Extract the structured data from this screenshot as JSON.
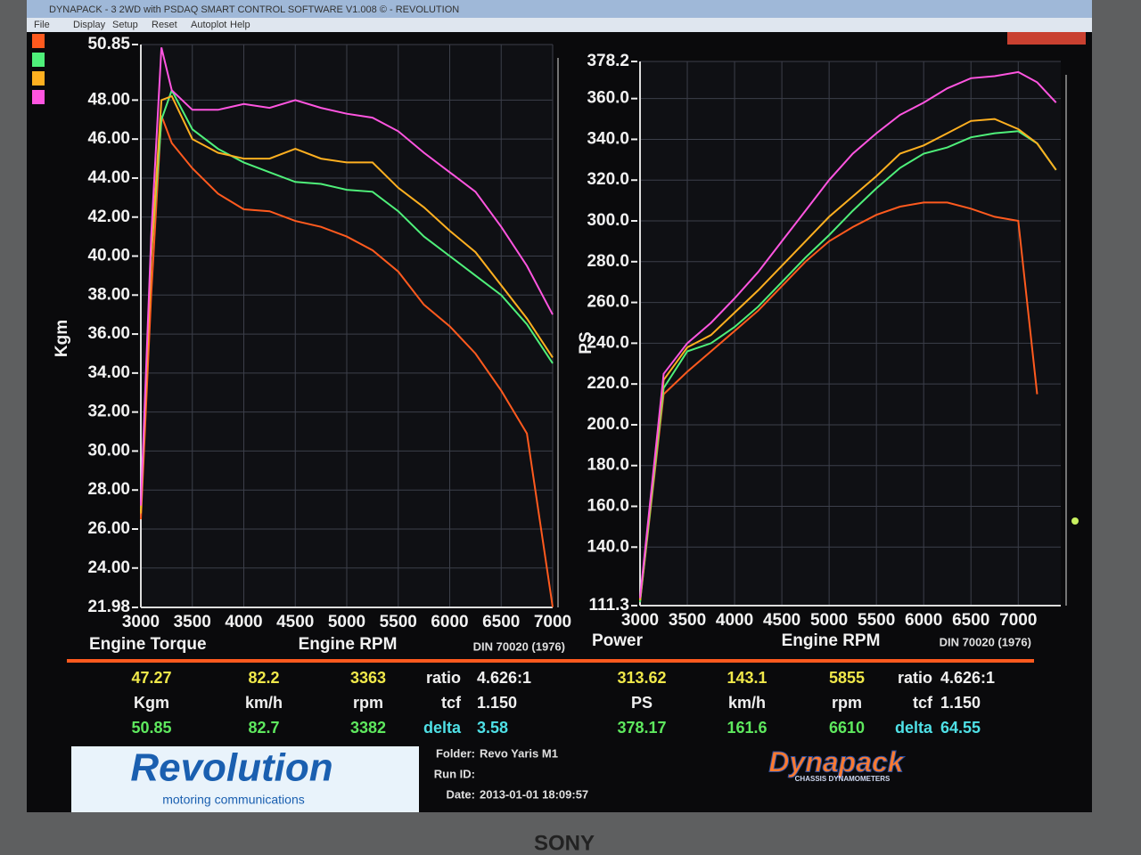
{
  "window": {
    "title": "DYNAPACK - 3 2WD with PSDAQ SMART CONTROL SOFTWARE V1.008 © - REVOLUTION",
    "menu": [
      "File",
      "Display",
      "Setup",
      "Reset",
      "Autoplot",
      "Help"
    ]
  },
  "chart_data": [
    {
      "type": "line",
      "title": "Engine Torque",
      "x_label": "Engine RPM",
      "y_label": "Kgm",
      "subtitle": "DIN 70020 (1976)",
      "x": [
        3000,
        3100,
        3200,
        3300,
        3500,
        3750,
        4000,
        4250,
        4500,
        4750,
        5000,
        5250,
        5500,
        5750,
        6000,
        6250,
        6500,
        6750,
        7000
      ],
      "series": [
        {
          "color": "#ff5a1e",
          "values": [
            26.5,
            38,
            47.2,
            45.8,
            44.5,
            43.2,
            42.4,
            42.3,
            41.8,
            41.5,
            41.0,
            40.3,
            39.2,
            37.5,
            36.4,
            35.0,
            33.1,
            30.9,
            22.0
          ]
        },
        {
          "color": "#4ff07a",
          "values": [
            27.0,
            40,
            47.0,
            48.5,
            46.5,
            45.5,
            44.8,
            44.3,
            43.8,
            43.7,
            43.4,
            43.3,
            42.3,
            41.0,
            40.0,
            39.0,
            38.0,
            36.5,
            34.5
          ]
        },
        {
          "color": "#ffb020",
          "values": [
            26.8,
            40,
            48.0,
            48.2,
            46.0,
            45.3,
            45.0,
            45.0,
            45.5,
            45.0,
            44.8,
            44.8,
            43.5,
            42.5,
            41.3,
            40.2,
            38.5,
            36.8,
            34.8
          ]
        },
        {
          "color": "#ff55e0",
          "values": [
            27.2,
            41,
            50.7,
            48.5,
            47.5,
            47.5,
            47.8,
            47.6,
            48.0,
            47.6,
            47.3,
            47.1,
            46.4,
            45.3,
            44.3,
            43.3,
            41.5,
            39.5,
            37.0
          ]
        }
      ],
      "xlim": [
        3000,
        7000
      ],
      "xticks": [
        3000,
        3500,
        4000,
        4500,
        5000,
        5500,
        6000,
        6500,
        7000
      ],
      "ylim": [
        21.98,
        50.85
      ],
      "yticks": [
        21.98,
        {
          "value": 24,
          "label": "24.00"
        },
        {
          "value": 26,
          "label": "26.00"
        },
        {
          "value": 28,
          "label": "28.00"
        },
        {
          "value": 30,
          "label": "30.00"
        },
        {
          "value": 32,
          "label": "32.00"
        },
        {
          "value": 34,
          "label": "34.00"
        },
        {
          "value": 36,
          "label": "36.00"
        },
        {
          "value": 38,
          "label": "38.00"
        },
        {
          "value": 40,
          "label": "40.00"
        },
        {
          "value": 42,
          "label": "42.00"
        },
        {
          "value": 44,
          "label": "44.00"
        },
        {
          "value": 46,
          "label": "46.00"
        },
        {
          "value": 48,
          "label": "48.00"
        },
        50.85
      ],
      "grid": true
    },
    {
      "type": "line",
      "title": "Power",
      "x_label": "Engine RPM",
      "y_label": "PS",
      "subtitle": "DIN 70020 (1976)",
      "x": [
        3000,
        3250,
        3500,
        3750,
        4000,
        4250,
        4500,
        4750,
        5000,
        5250,
        5500,
        5750,
        6000,
        6250,
        6500,
        6750,
        7000,
        7200,
        7400
      ],
      "series": [
        {
          "color": "#ff5a1e",
          "values": [
            113,
            215,
            226,
            236,
            246,
            256,
            268,
            280,
            290,
            297,
            303,
            307,
            309,
            309,
            306,
            302,
            300,
            215,
            null
          ]
        },
        {
          "color": "#4ff07a",
          "values": [
            113,
            218,
            236,
            240,
            248,
            258,
            270,
            282,
            293,
            305,
            316,
            326,
            333,
            336,
            341,
            343,
            344,
            338,
            325
          ]
        },
        {
          "color": "#ffb020",
          "values": [
            114,
            222,
            238,
            244,
            255,
            266,
            278,
            290,
            302,
            312,
            322,
            333,
            337,
            343,
            349,
            350,
            345,
            338,
            325
          ]
        },
        {
          "color": "#ff55e0",
          "values": [
            115,
            225,
            240,
            250,
            262,
            275,
            290,
            305,
            320,
            333,
            343,
            352,
            358,
            365,
            370,
            371,
            373,
            368,
            358
          ]
        }
      ],
      "xlim": [
        3000,
        7450
      ],
      "xticks": [
        3000,
        3500,
        4000,
        4500,
        5000,
        5500,
        6000,
        6500,
        7000
      ],
      "ylim": [
        111.3,
        378.2
      ],
      "yticks": [
        111.3,
        {
          "value": 140,
          "label": "140.0"
        },
        {
          "value": 160,
          "label": "160.0"
        },
        {
          "value": 180,
          "label": "180.0"
        },
        {
          "value": 200,
          "label": "200.0"
        },
        {
          "value": 220,
          "label": "220.0"
        },
        {
          "value": 240,
          "label": "240.0"
        },
        {
          "value": 260,
          "label": "260.0"
        },
        {
          "value": 280,
          "label": "280.0"
        },
        {
          "value": 300,
          "label": "300.0"
        },
        {
          "value": 320,
          "label": "320.0"
        },
        {
          "value": 340,
          "label": "340.0"
        },
        {
          "value": 360,
          "label": "360.0"
        },
        378.2
      ],
      "grid": true
    }
  ],
  "readouts": {
    "left": [
      [
        "47.27",
        "82.2",
        "3363",
        "ratio",
        "4.626:1"
      ],
      [
        "Kgm",
        "km/h",
        "rpm",
        "tcf",
        "1.150"
      ],
      [
        "50.85",
        "82.7",
        "3382",
        "delta",
        "3.58"
      ]
    ],
    "right": [
      [
        "313.62",
        "143.1",
        "5855",
        "ratio",
        "4.626:1"
      ],
      [
        "PS",
        "km/h",
        "rpm",
        "tcf",
        "1.150"
      ],
      [
        "378.17",
        "161.6",
        "6610",
        "delta",
        "64.55"
      ]
    ]
  },
  "footer": {
    "logo": "Revolution",
    "logo_sub": "motoring communications",
    "folder_label": "Folder:",
    "folder": "Revo Yaris M1",
    "run_label": "Run ID:",
    "date_label": "Date:",
    "date": "2013-01-01 18:09:57",
    "brand": "Dynapack",
    "brand_sub": "CHASSIS DYNAMOMETERS",
    "monitor": "SONY"
  }
}
